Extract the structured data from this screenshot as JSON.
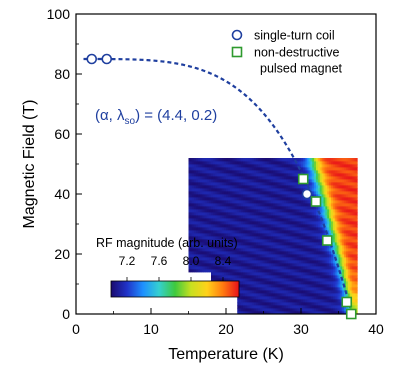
{
  "chart_data": {
    "type": "scatter",
    "xlabel": "Temperature (K)",
    "ylabel": "Magnetic Field (T)",
    "xlim": [
      0,
      40
    ],
    "ylim": [
      0,
      100
    ],
    "xticks": [
      "0",
      "10",
      "20",
      "30",
      "40"
    ],
    "yticks": [
      "0",
      "20",
      "40",
      "60",
      "80",
      "100"
    ],
    "legend_position": "top-right",
    "series": [
      {
        "name": "single-turn coil",
        "marker": "circle",
        "color": "#1f3f9f",
        "x": [
          2.1,
          4.1,
          30.8
        ],
        "y": [
          85,
          85,
          40
        ]
      },
      {
        "name": "non-destructive pulsed magnet",
        "legend_lines": [
          "non-destructive",
          "pulsed magnet"
        ],
        "marker": "square",
        "color": "#2e9a2e",
        "x": [
          30.3,
          32.0,
          33.5,
          36.1,
          36.7
        ],
        "y": [
          45,
          37.5,
          24.5,
          4,
          0
        ]
      }
    ],
    "fit_curve": {
      "style": "dashed",
      "color": "#1f3f9f",
      "alpha": 4.4,
      "lambda_so": 0.2,
      "Tc": 36.8,
      "H0": 85,
      "label_lhs": "(α, λ",
      "label_sub": "so",
      "label_rhs": ") = (4.4, 0.2)"
    },
    "heatmap": {
      "x_range": [
        15,
        37.5
      ],
      "y_range": [
        0,
        52
      ],
      "colorbar": {
        "title": "RF magnitude (arb. units)",
        "ticks": [
          "7.2",
          "7.6",
          "8.0",
          "8.4"
        ],
        "min": 7.0,
        "max": 8.6,
        "colors": [
          "#1a0a6e",
          "#2033c8",
          "#1e90ff",
          "#35d0d0",
          "#3ec93e",
          "#c8e020",
          "#ffd21a",
          "#ff7a10",
          "#e8101a"
        ]
      }
    }
  }
}
